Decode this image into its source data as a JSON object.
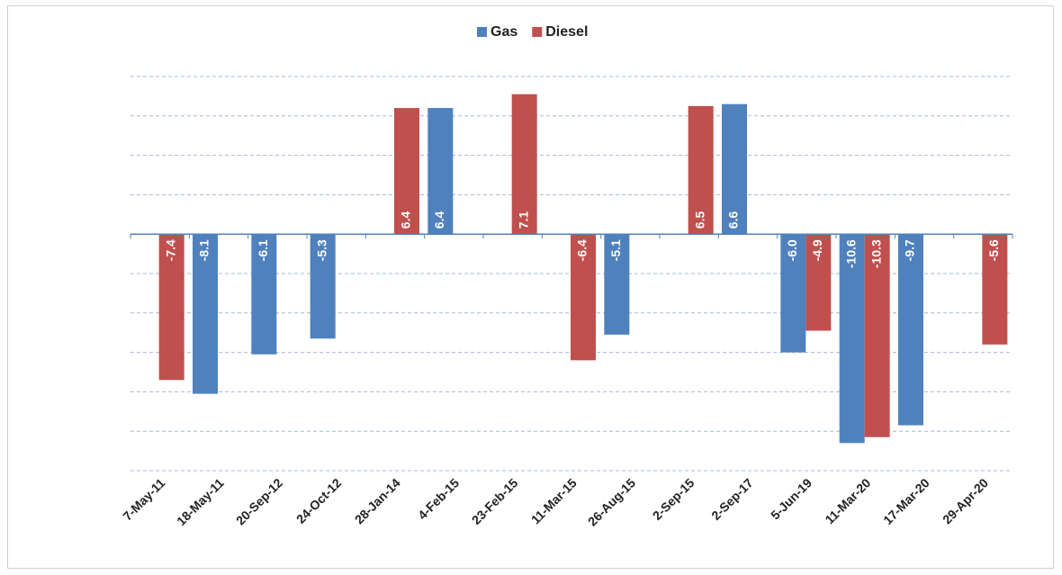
{
  "chart_data": {
    "type": "bar",
    "categories": [
      "7-May-11",
      "18-May-11",
      "20-Sep-12",
      "24-Oct-12",
      "28-Jan-14",
      "4-Feb-15",
      "23-Feb-15",
      "11-Mar-15",
      "26-Aug-15",
      "2-Sep-15",
      "2-Sep-17",
      "5-Jun-19",
      "11-Mar-20",
      "17-Mar-20",
      "29-Apr-20"
    ],
    "series": [
      {
        "name": "Gas",
        "color": "#4f81bd",
        "values": [
          null,
          -8.1,
          -6.1,
          -5.3,
          null,
          6.4,
          null,
          null,
          -5.1,
          null,
          6.6,
          -6.0,
          -10.6,
          -9.7,
          null
        ],
        "value_labels": [
          null,
          "-8.1",
          "-6.1",
          "-5.3",
          null,
          "6.4",
          null,
          null,
          "-5.1",
          null,
          "6.6",
          "-6.0",
          "-10.6",
          "-9.7",
          null
        ]
      },
      {
        "name": "Diesel",
        "color": "#c0504d",
        "values": [
          -7.4,
          null,
          null,
          null,
          6.4,
          null,
          7.1,
          -6.4,
          null,
          6.5,
          null,
          -4.9,
          -10.3,
          null,
          -5.6
        ],
        "value_labels": [
          "-7.4",
          null,
          null,
          null,
          "6.4",
          null,
          "7.1",
          "-6.4",
          null,
          "6.5",
          null,
          "-4.9",
          "-10.3",
          null,
          "-5.6"
        ]
      }
    ],
    "ylim": [
      -12,
      8
    ],
    "yticks": [
      -12,
      -10,
      -8,
      -6,
      -4,
      -2,
      0,
      2,
      4,
      6,
      8
    ],
    "grid": true,
    "legend": "top"
  }
}
